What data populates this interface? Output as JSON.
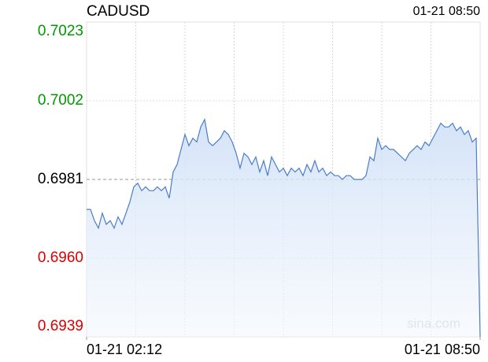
{
  "chart_data": {
    "type": "line",
    "title": "CADUSD",
    "updated": "01-21 08:50",
    "watermark": "sina.com",
    "xlim": [
      0,
      100
    ],
    "xticks": [
      {
        "value": 0,
        "label": "01-21 02:12"
      },
      {
        "value": 100,
        "label": "01-21 08:50"
      }
    ],
    "ylim": [
      0.6939,
      0.7023
    ],
    "yticks": [
      0.6939,
      0.696,
      0.6981,
      0.7002,
      0.7023
    ],
    "ytick_labels": [
      "0.6939",
      "0.6960",
      "0.6981",
      "0.7002",
      "0.7023"
    ],
    "ytick_colors": [
      "#dd0000",
      "#dd0000",
      "#000000",
      "#009900",
      "#009900"
    ],
    "grid_styles": [
      "dotted",
      "dotted",
      "dashed",
      "dotted",
      "dotted"
    ],
    "grid": true,
    "series": [
      {
        "name": "CADUSD",
        "color": "#4a7cc9",
        "values": [
          0.6973,
          0.6973,
          0.697,
          0.6968,
          0.6972,
          0.6969,
          0.697,
          0.6968,
          0.6971,
          0.6969,
          0.6972,
          0.6975,
          0.6979,
          0.698,
          0.6978,
          0.6979,
          0.6978,
          0.6978,
          0.6979,
          0.6978,
          0.6979,
          0.6976,
          0.6983,
          0.6985,
          0.6989,
          0.6993,
          0.699,
          0.6992,
          0.6991,
          0.6995,
          0.6997,
          0.6991,
          0.699,
          0.6991,
          0.6992,
          0.6994,
          0.6993,
          0.6991,
          0.6988,
          0.6984,
          0.6988,
          0.6987,
          0.6985,
          0.6987,
          0.6983,
          0.6986,
          0.6982,
          0.6987,
          0.6985,
          0.6983,
          0.6984,
          0.6982,
          0.6984,
          0.6983,
          0.6984,
          0.6982,
          0.6985,
          0.6983,
          0.6986,
          0.6983,
          0.6984,
          0.6982,
          0.6983,
          0.6982,
          0.6982,
          0.6981,
          0.6982,
          0.6982,
          0.6981,
          0.6981,
          0.6981,
          0.6982,
          0.6987,
          0.6986,
          0.6992,
          0.6989,
          0.699,
          0.6989,
          0.6989,
          0.6988,
          0.6987,
          0.6986,
          0.6988,
          0.6989,
          0.699,
          0.6989,
          0.6991,
          0.699,
          0.6992,
          0.6994,
          0.6996,
          0.6995,
          0.6995,
          0.6996,
          0.6994,
          0.6995,
          0.6993,
          0.6994,
          0.6991,
          0.6992,
          0.6939
        ]
      }
    ]
  }
}
